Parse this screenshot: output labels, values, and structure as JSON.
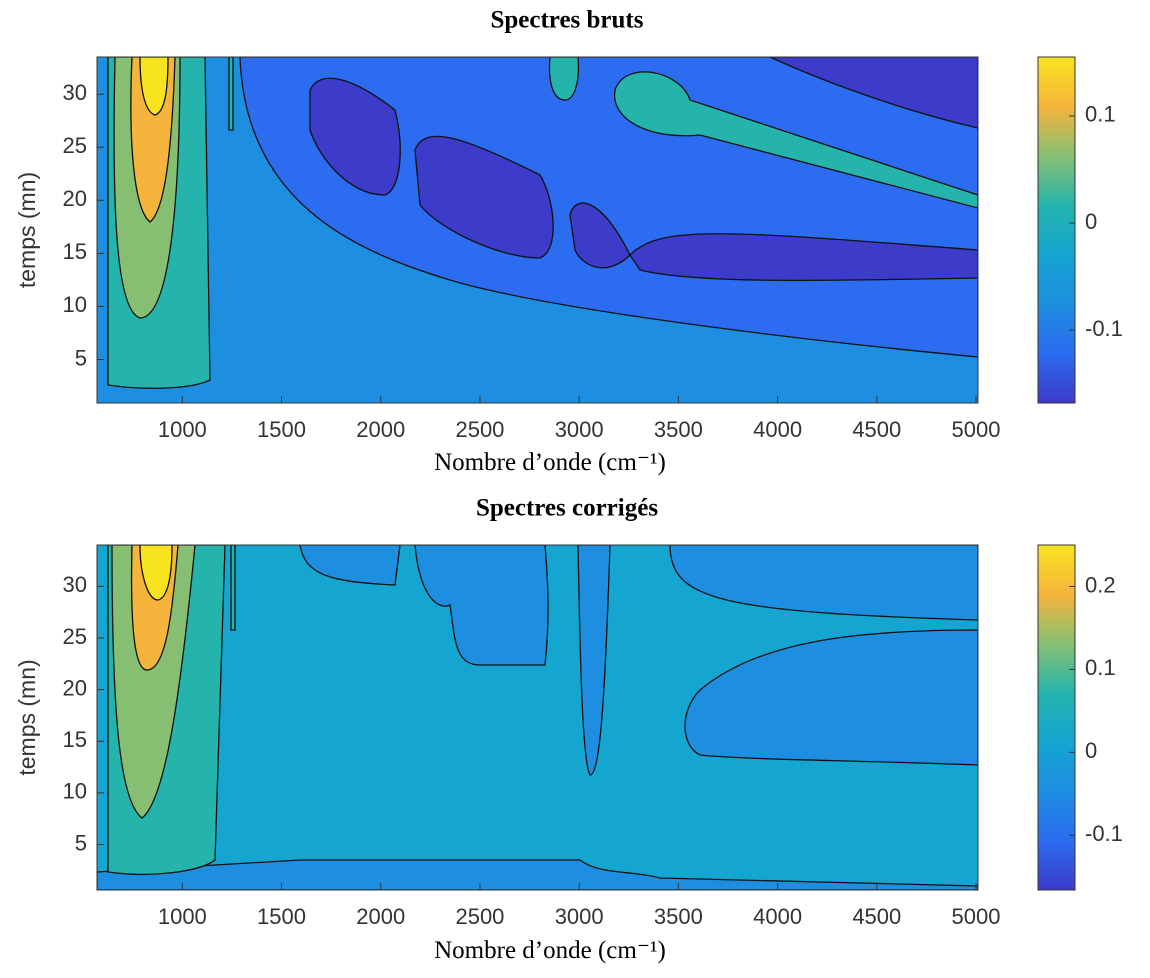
{
  "chart_data": [
    {
      "type": "contour",
      "title": "Spectres bruts",
      "xlabel": "Nombre d’onde (cm⁻¹)",
      "ylabel": "temps (mn)",
      "xlim": [
        570,
        5010
      ],
      "ylim": [
        0.9,
        33.5
      ],
      "xticks": [
        1000,
        1500,
        2000,
        2500,
        3000,
        3500,
        4000,
        4500,
        5000
      ],
      "yticks": [
        5,
        10,
        15,
        20,
        25,
        30
      ],
      "colorbar": {
        "lim": [
          -0.168,
          0.155
        ],
        "ticks": [
          -0.1,
          0,
          0.1
        ]
      },
      "colormap": [
        "#3d3bc9",
        "#2b6cf0",
        "#1e8fe0",
        "#14a5d0",
        "#25b4ac",
        "#86bf72",
        "#f5b53c",
        "#f7e41f"
      ]
    },
    {
      "type": "contour",
      "title": "Spectres corrigés",
      "xlabel": "Nombre d’onde (cm⁻¹)",
      "ylabel": "temps (mn)",
      "xlim": [
        570,
        5010
      ],
      "ylim": [
        0.6,
        34.0
      ],
      "xticks": [
        1000,
        1500,
        2000,
        2500,
        3000,
        3500,
        4000,
        4500,
        5000
      ],
      "yticks": [
        5,
        10,
        15,
        20,
        25,
        30
      ],
      "colorbar": {
        "lim": [
          -0.166,
          0.25
        ],
        "ticks": [
          -0.1,
          0,
          0.1,
          0.2
        ]
      },
      "colormap": [
        "#3d3bc9",
        "#2b6cf0",
        "#1e8fe0",
        "#14a5d0",
        "#25b4ac",
        "#86bf72",
        "#f5b53c",
        "#f7e41f"
      ]
    }
  ]
}
